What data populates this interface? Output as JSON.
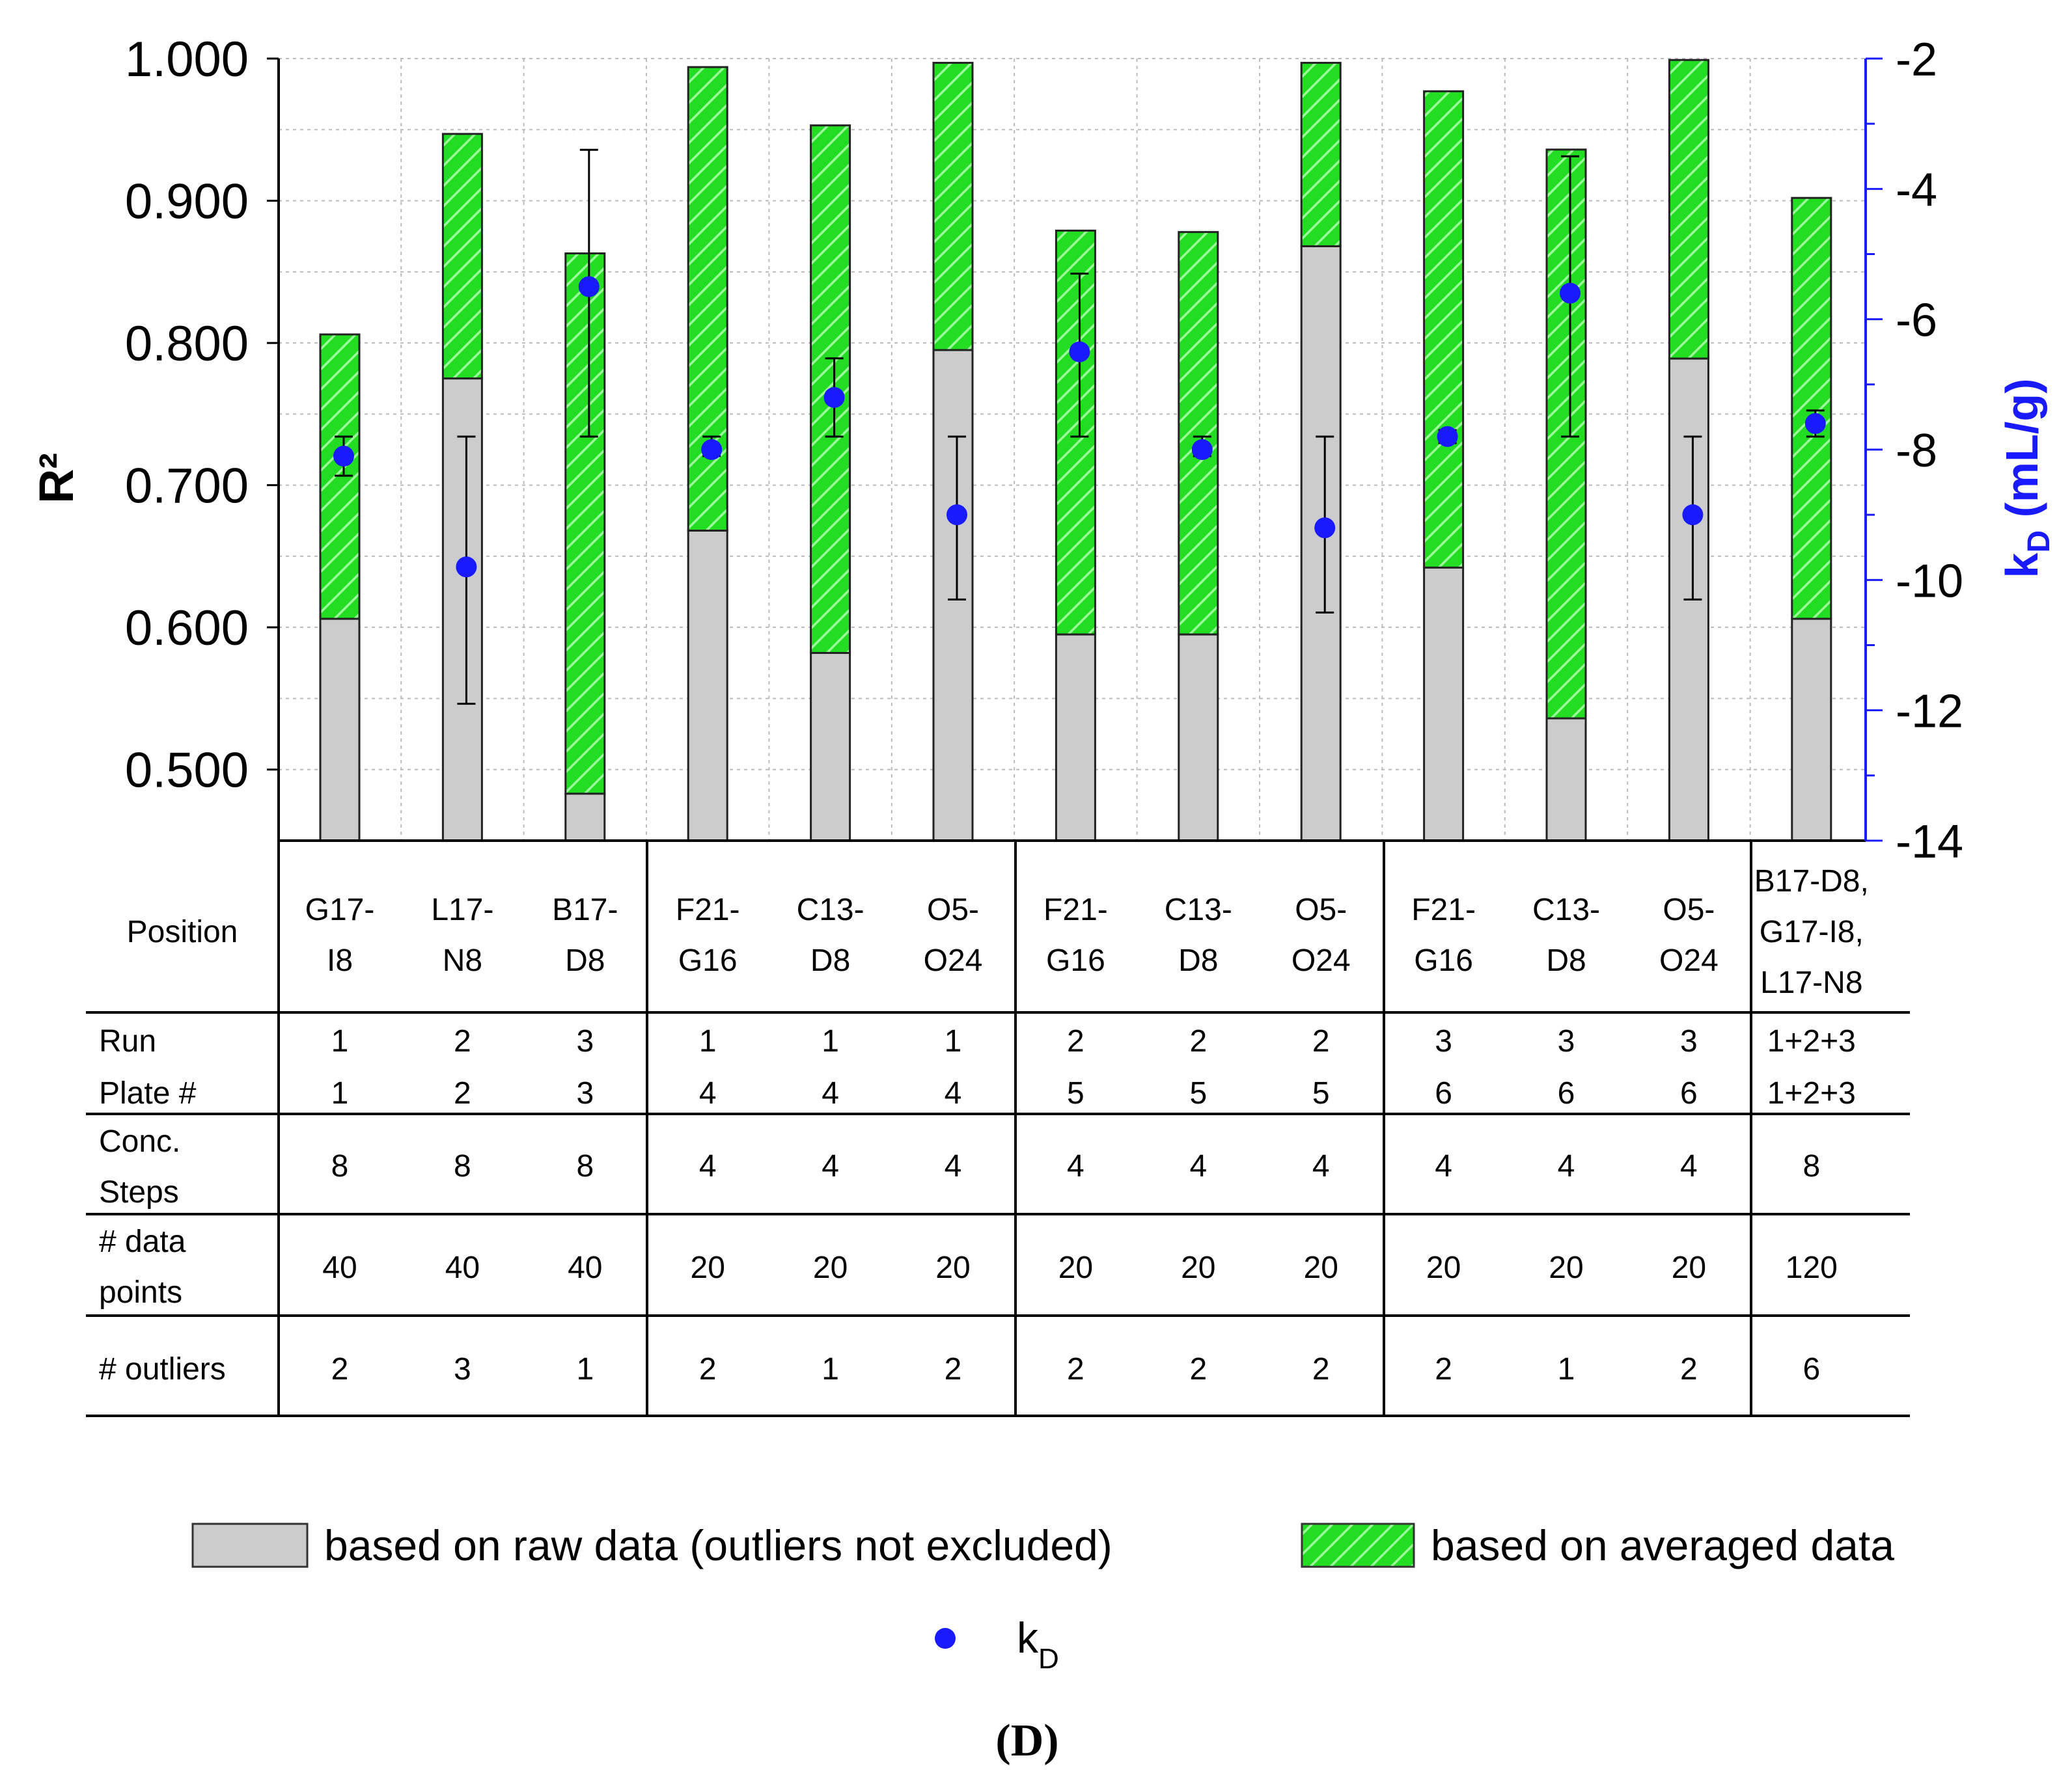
{
  "figure_label": "(D)",
  "colors": {
    "raw_bar": "#cccccc",
    "avg_bar": "#22dd22",
    "hatch": "#9cff9c",
    "kd_point": "#1a1aff",
    "right_axis": "#1a1aff",
    "grid": "#bbbbbb",
    "text": "#000000"
  },
  "chart_data": {
    "type": "bar",
    "title": "",
    "ylabel": "R²",
    "ylim": [
      0.45,
      1.0
    ],
    "yticks": [
      "0.500",
      "0.600",
      "0.700",
      "0.800",
      "0.900",
      "1.000"
    ],
    "ytick_values": [
      0.5,
      0.6,
      0.7,
      0.8,
      0.9,
      1.0
    ],
    "y2label": {
      "main": "k",
      "sub": "D",
      "unit": " (mL/g)"
    },
    "y2lim": [
      -14,
      -2
    ],
    "y2ticks": [
      "-2",
      "-4",
      "-6",
      "-8",
      "-10",
      "-12",
      "-14"
    ],
    "y2tick_values": [
      -2,
      -4,
      -6,
      -8,
      -10,
      -12,
      -14
    ],
    "categories": [
      "G17-I8",
      "L17-N8",
      "B17-D8",
      "F21-G16",
      "C13-D8",
      "O5-O24",
      "F21-G16",
      "C13-D8",
      "O5-O24",
      "F21-G16",
      "C13-D8",
      "O5-O24",
      "B17-D8, G17-I8, L17-N8"
    ],
    "series": [
      {
        "name": "based on raw data (outliers not excluded)",
        "type": "bar",
        "values": [
          0.606,
          0.775,
          0.483,
          0.668,
          0.582,
          0.795,
          0.595,
          0.595,
          0.868,
          0.642,
          0.536,
          0.789,
          0.606
        ]
      },
      {
        "name": "based on averaged data",
        "type": "bar-hatched",
        "values": [
          0.806,
          0.947,
          0.863,
          0.994,
          0.953,
          0.997,
          0.879,
          0.878,
          0.997,
          0.977,
          0.936,
          0.999,
          0.902
        ]
      },
      {
        "name": "kD",
        "type": "scatter",
        "axis": "right",
        "values": [
          -8.1,
          -9.8,
          -5.5,
          -8.0,
          -7.2,
          -9.0,
          -6.5,
          -8.0,
          -9.2,
          -7.8,
          -5.6,
          -9.0,
          -7.6
        ],
        "error_low": [
          -8.4,
          -11.9,
          -7.8,
          -8.1,
          -7.8,
          -10.3,
          -7.8,
          -8.1,
          -10.5,
          -7.9,
          -7.8,
          -10.3,
          -7.8
        ],
        "error_high": [
          -7.8,
          -7.8,
          -3.4,
          -7.8,
          -6.6,
          -7.8,
          -5.3,
          -7.8,
          -7.8,
          -7.7,
          -3.5,
          -7.8,
          -7.4
        ]
      }
    ],
    "grid": true
  },
  "table": {
    "row_headers": {
      "position": "Position",
      "run": "Run",
      "plate": "Plate #",
      "conc": [
        "Conc.",
        "Steps"
      ],
      "datapoints": [
        "# data",
        "points"
      ],
      "outliers": "# outliers"
    },
    "columns": [
      {
        "position": [
          "G17-",
          "I8"
        ],
        "run": "1",
        "plate": "1",
        "conc": "8",
        "datapoints": "40",
        "outliers": "2"
      },
      {
        "position": [
          "L17-",
          "N8"
        ],
        "run": "2",
        "plate": "2",
        "conc": "8",
        "datapoints": "40",
        "outliers": "3"
      },
      {
        "position": [
          "B17-",
          "D8"
        ],
        "run": "3",
        "plate": "3",
        "conc": "8",
        "datapoints": "40",
        "outliers": "1"
      },
      {
        "position": [
          "F21-",
          "G16"
        ],
        "run": "1",
        "plate": "4",
        "conc": "4",
        "datapoints": "20",
        "outliers": "2"
      },
      {
        "position": [
          "C13-",
          "D8"
        ],
        "run": "1",
        "plate": "4",
        "conc": "4",
        "datapoints": "20",
        "outliers": "1"
      },
      {
        "position": [
          "O5-",
          "O24"
        ],
        "run": "1",
        "plate": "4",
        "conc": "4",
        "datapoints": "20",
        "outliers": "2"
      },
      {
        "position": [
          "F21-",
          "G16"
        ],
        "run": "2",
        "plate": "5",
        "conc": "4",
        "datapoints": "20",
        "outliers": "2"
      },
      {
        "position": [
          "C13-",
          "D8"
        ],
        "run": "2",
        "plate": "5",
        "conc": "4",
        "datapoints": "20",
        "outliers": "2"
      },
      {
        "position": [
          "O5-",
          "O24"
        ],
        "run": "2",
        "plate": "5",
        "conc": "4",
        "datapoints": "20",
        "outliers": "2"
      },
      {
        "position": [
          "F21-",
          "G16"
        ],
        "run": "3",
        "plate": "6",
        "conc": "4",
        "datapoints": "20",
        "outliers": "2"
      },
      {
        "position": [
          "C13-",
          "D8"
        ],
        "run": "3",
        "plate": "6",
        "conc": "4",
        "datapoints": "20",
        "outliers": "1"
      },
      {
        "position": [
          "O5-",
          "O24"
        ],
        "run": "3",
        "plate": "6",
        "conc": "4",
        "datapoints": "20",
        "outliers": "2"
      },
      {
        "position": [
          "B17-D8,",
          "G17-I8,",
          "L17-N8"
        ],
        "run": "1+2+3",
        "plate": "1+2+3",
        "conc": "8",
        "datapoints": "120",
        "outliers": "6"
      }
    ]
  },
  "legend": {
    "raw": "based on raw data (outliers not excluded)",
    "averaged": "based on averaged data",
    "kd_main": "k",
    "kd_sub": "D"
  }
}
